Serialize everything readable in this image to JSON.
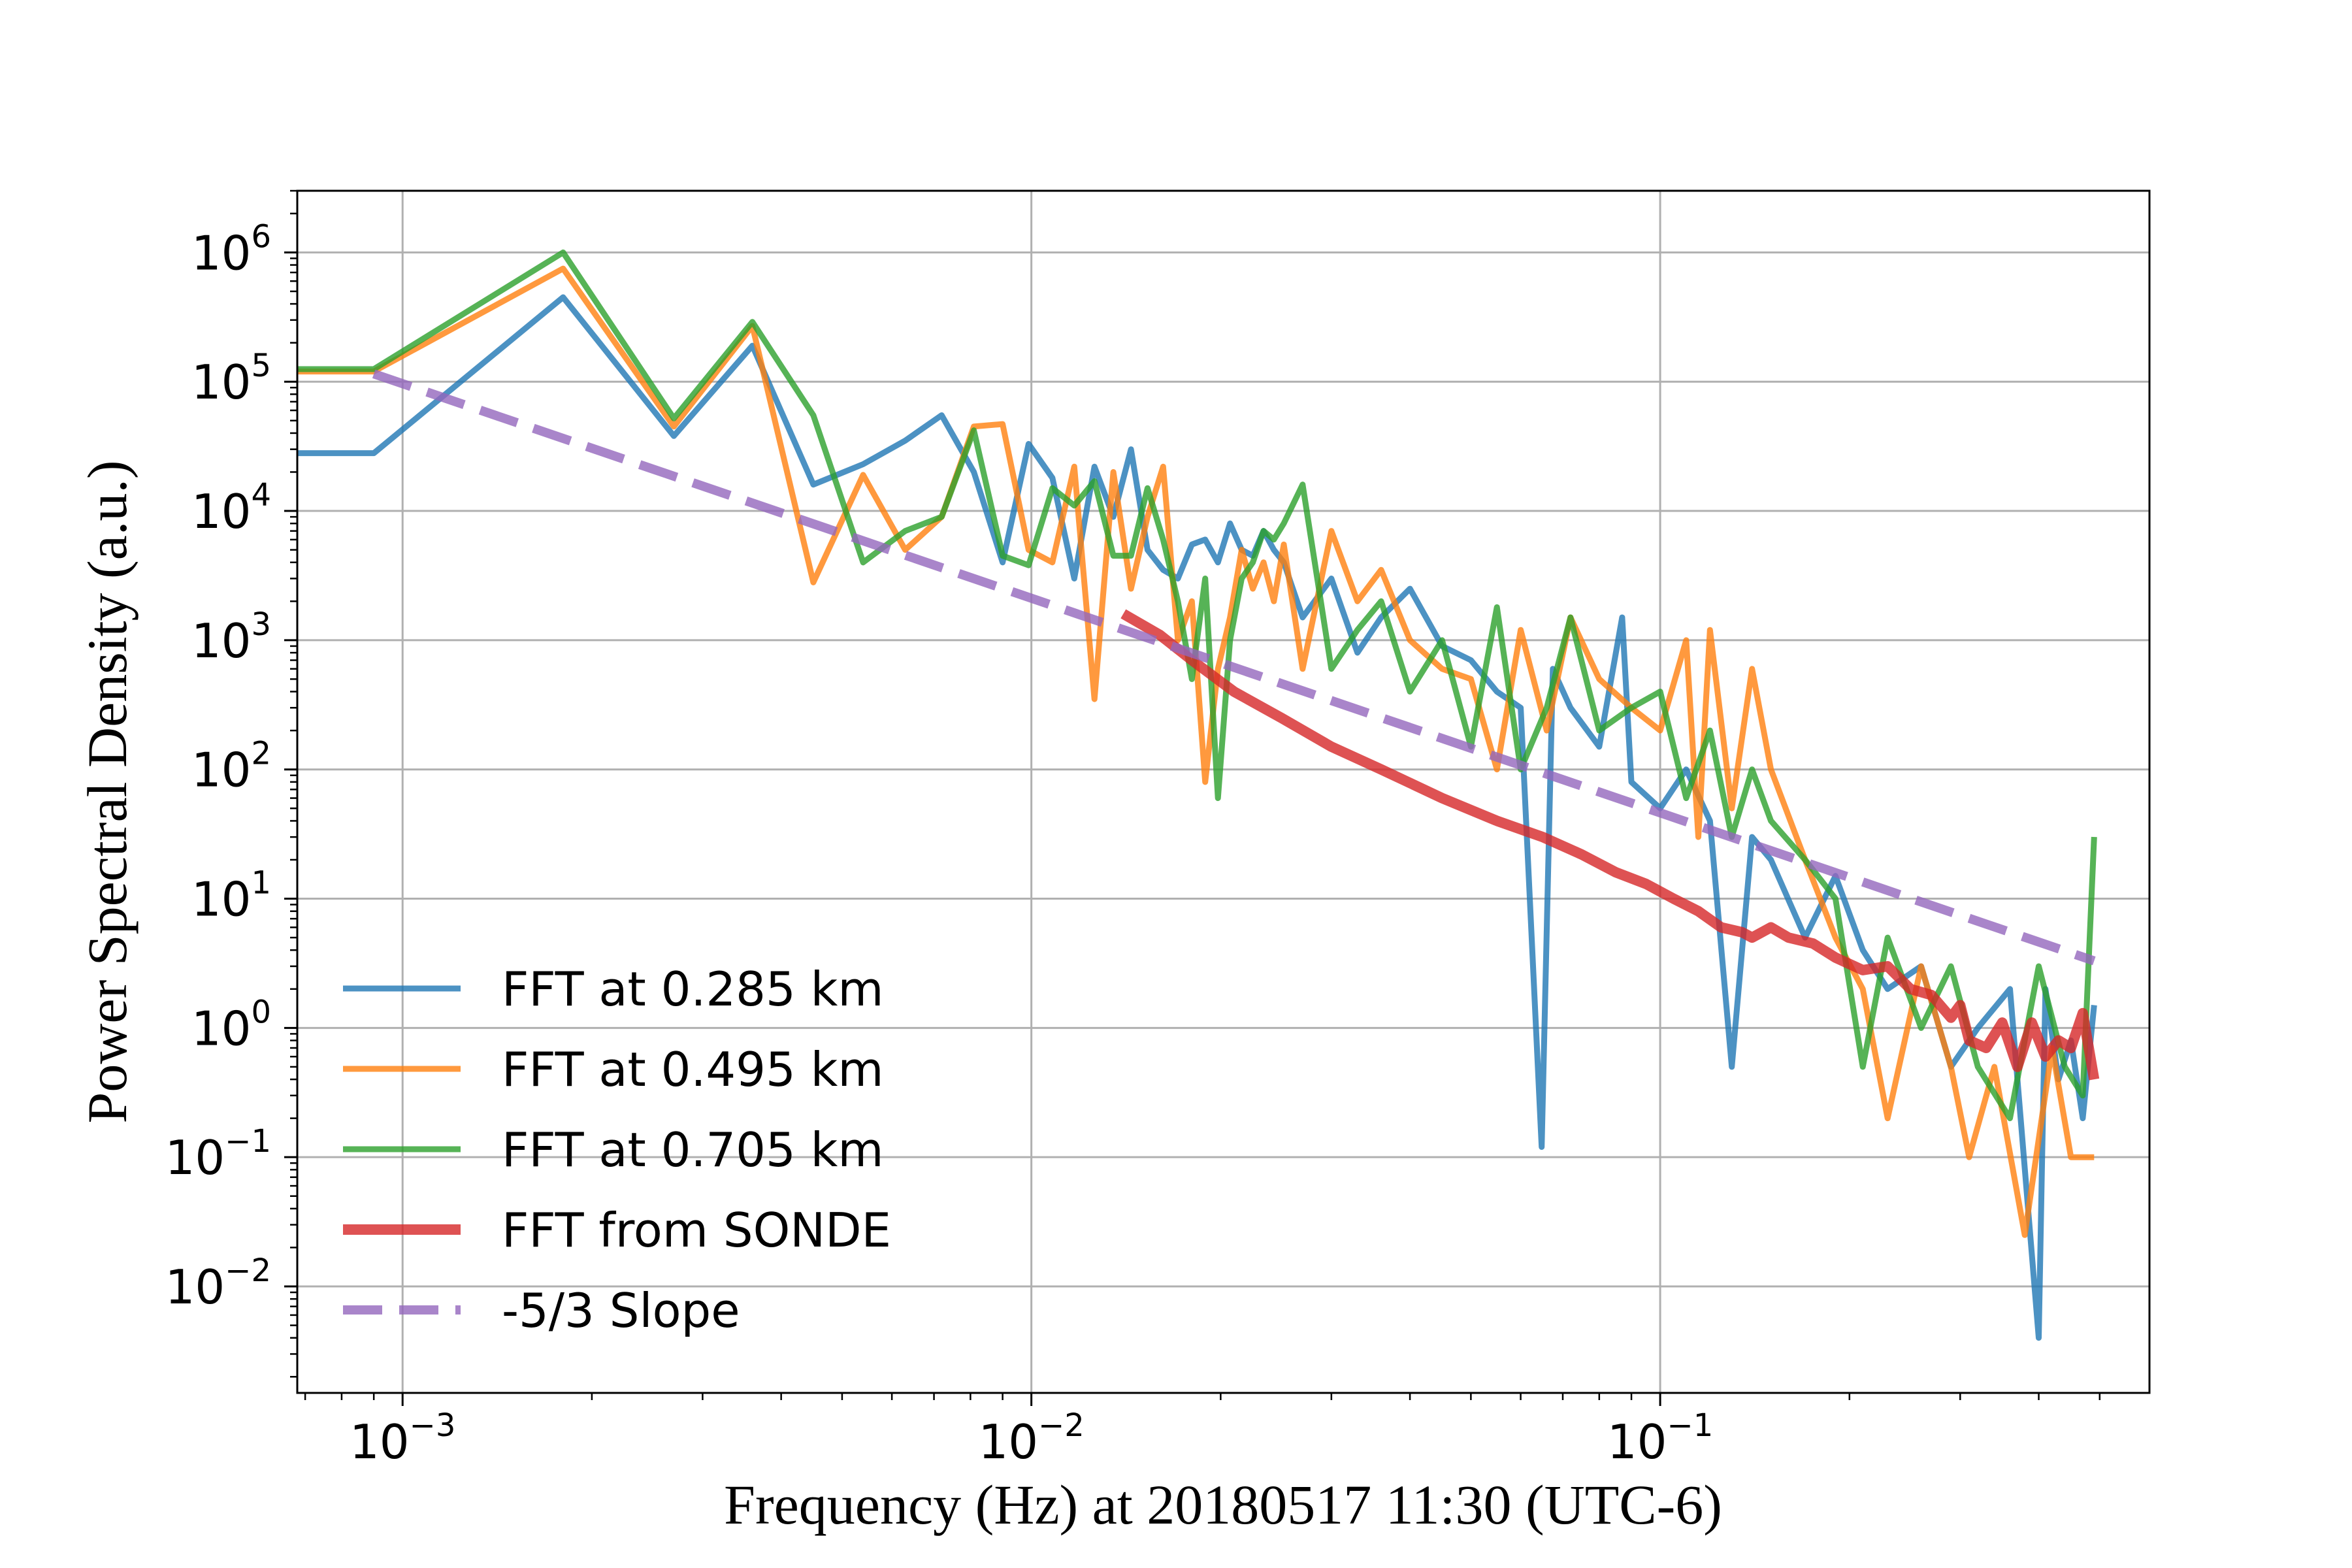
{
  "chart_data": {
    "type": "line",
    "title": "",
    "xlabel": "Frequency (Hz) at 20180517 11:30 (UTC-6)",
    "ylabel": "Power Spectral Density (a.u.)",
    "xscale": "log",
    "yscale": "log",
    "xlim": [
      0.00068,
      0.6
    ],
    "ylim": [
      0.0015,
      3000000
    ],
    "grid": true,
    "legend_position": "lower-left",
    "x_ticks": [
      {
        "value": 0.001,
        "base": "10",
        "exp": "−3"
      },
      {
        "value": 0.01,
        "base": "10",
        "exp": "−2"
      },
      {
        "value": 0.1,
        "base": "10",
        "exp": "−1"
      }
    ],
    "y_ticks": [
      {
        "value": 0.01,
        "base": "10",
        "exp": "−2"
      },
      {
        "value": 0.1,
        "base": "10",
        "exp": "−1"
      },
      {
        "value": 1,
        "base": "10",
        "exp": "0"
      },
      {
        "value": 10,
        "base": "10",
        "exp": "1"
      },
      {
        "value": 100,
        "base": "10",
        "exp": "2"
      },
      {
        "value": 1000,
        "base": "10",
        "exp": "3"
      },
      {
        "value": 10000,
        "base": "10",
        "exp": "4"
      },
      {
        "value": 100000,
        "base": "10",
        "exp": "5"
      },
      {
        "value": 1000000,
        "base": "10",
        "exp": "6"
      }
    ],
    "series": [
      {
        "name": "FFT at 0.285 km",
        "color": "#1f77b4",
        "style": "solid",
        "x": [
          0.00068,
          0.0009,
          0.0018,
          0.0027,
          0.0036,
          0.0045,
          0.0054,
          0.0063,
          0.0072,
          0.0081,
          0.009,
          0.0099,
          0.0108,
          0.0117,
          0.0126,
          0.0135,
          0.0144,
          0.0153,
          0.0162,
          0.0171,
          0.018,
          0.0189,
          0.0198,
          0.0207,
          0.0216,
          0.0225,
          0.0234,
          0.0243,
          0.0252,
          0.027,
          0.03,
          0.033,
          0.036,
          0.04,
          0.045,
          0.05,
          0.055,
          0.06,
          0.0648,
          0.0675,
          0.072,
          0.08,
          0.087,
          0.09,
          0.1,
          0.11,
          0.12,
          0.13,
          0.14,
          0.15,
          0.17,
          0.19,
          0.21,
          0.23,
          0.26,
          0.29,
          0.32,
          0.36,
          0.4,
          0.405,
          0.41,
          0.43,
          0.45,
          0.47,
          0.49
        ],
        "y": [
          28000,
          28000,
          450000,
          38000,
          190000,
          16000,
          23000,
          35000,
          55000,
          20000,
          4000,
          33000,
          18000,
          3000,
          22000,
          9000,
          30000,
          5000,
          3500,
          3000,
          5500,
          6000,
          4000,
          8000,
          5000,
          4500,
          7000,
          5000,
          4000,
          1500,
          3000,
          800,
          1500,
          2500,
          900,
          700,
          400,
          300,
          0.12,
          600,
          300,
          150,
          1500,
          80,
          50,
          100,
          40,
          0.5,
          30,
          20,
          5,
          15,
          4,
          2,
          3,
          0.5,
          1,
          2,
          0.004,
          0.1,
          2,
          0.4,
          0.8,
          0.2,
          1.5
        ]
      },
      {
        "name": "FFT at 0.495 km",
        "color": "#ff7f0e",
        "style": "solid",
        "x": [
          0.00068,
          0.0009,
          0.0018,
          0.0027,
          0.0036,
          0.0045,
          0.0054,
          0.0063,
          0.0072,
          0.0081,
          0.009,
          0.0099,
          0.0108,
          0.0117,
          0.0126,
          0.0135,
          0.0144,
          0.0153,
          0.0162,
          0.0171,
          0.018,
          0.0189,
          0.0198,
          0.0207,
          0.0216,
          0.0225,
          0.0234,
          0.0243,
          0.0252,
          0.027,
          0.03,
          0.033,
          0.036,
          0.04,
          0.045,
          0.05,
          0.055,
          0.06,
          0.066,
          0.072,
          0.08,
          0.09,
          0.1,
          0.11,
          0.115,
          0.12,
          0.13,
          0.14,
          0.15,
          0.17,
          0.19,
          0.21,
          0.23,
          0.26,
          0.29,
          0.31,
          0.34,
          0.38,
          0.42,
          0.45,
          0.49
        ],
        "y": [
          120000,
          120000,
          750000,
          45000,
          270000,
          2800,
          19000,
          5000,
          9000,
          45000,
          47000,
          5000,
          4000,
          22000,
          350,
          20000,
          2500,
          9000,
          22000,
          1000,
          2000,
          80,
          600,
          1500,
          5000,
          2500,
          4000,
          2000,
          5500,
          600,
          7000,
          2000,
          3500,
          1000,
          600,
          500,
          100,
          1200,
          200,
          1500,
          500,
          300,
          200,
          1000,
          30,
          1200,
          50,
          600,
          100,
          20,
          5,
          2,
          0.2,
          3,
          0.5,
          0.1,
          0.5,
          0.025,
          0.7,
          0.1,
          0.1
        ]
      },
      {
        "name": "FFT at 0.705 km",
        "color": "#2ca02c",
        "style": "solid",
        "x": [
          0.00068,
          0.0009,
          0.0018,
          0.0027,
          0.0036,
          0.0045,
          0.0054,
          0.0063,
          0.0072,
          0.0081,
          0.009,
          0.0099,
          0.0108,
          0.0117,
          0.0126,
          0.0135,
          0.0144,
          0.0153,
          0.0162,
          0.0171,
          0.018,
          0.0189,
          0.0198,
          0.0207,
          0.0216,
          0.0225,
          0.0234,
          0.0243,
          0.0252,
          0.027,
          0.03,
          0.033,
          0.036,
          0.04,
          0.045,
          0.05,
          0.055,
          0.06,
          0.066,
          0.072,
          0.08,
          0.09,
          0.1,
          0.11,
          0.12,
          0.13,
          0.14,
          0.15,
          0.17,
          0.19,
          0.21,
          0.23,
          0.26,
          0.29,
          0.32,
          0.36,
          0.4,
          0.44,
          0.47,
          0.49
        ],
        "y": [
          125000,
          125000,
          1000000,
          52000,
          290000,
          55000,
          4000,
          7000,
          9000,
          42000,
          4500,
          3800,
          15000,
          11000,
          17000,
          4500,
          4500,
          15000,
          6000,
          2000,
          500,
          3000,
          60,
          1000,
          3000,
          4000,
          7000,
          6000,
          8000,
          16000,
          600,
          1200,
          2000,
          400,
          1000,
          150,
          1800,
          100,
          300,
          1500,
          200,
          300,
          400,
          60,
          200,
          30,
          100,
          40,
          20,
          10,
          0.5,
          5,
          1,
          3,
          0.5,
          0.2,
          3,
          0.5,
          0.3,
          30
        ]
      },
      {
        "name": "FFT from SONDE",
        "color": "#d62728",
        "style": "solid",
        "x": [
          0.014,
          0.016,
          0.018,
          0.021,
          0.025,
          0.03,
          0.036,
          0.045,
          0.055,
          0.065,
          0.075,
          0.085,
          0.095,
          0.105,
          0.115,
          0.125,
          0.135,
          0.14,
          0.15,
          0.16,
          0.175,
          0.19,
          0.21,
          0.23,
          0.25,
          0.27,
          0.29,
          0.3,
          0.31,
          0.33,
          0.35,
          0.37,
          0.39,
          0.41,
          0.43,
          0.45,
          0.47,
          0.49
        ],
        "y": [
          1600,
          1100,
          700,
          400,
          250,
          150,
          100,
          60,
          40,
          30,
          22,
          16,
          13,
          10,
          8,
          6,
          5.5,
          5,
          6,
          5,
          4.5,
          3.5,
          2.8,
          3,
          2,
          1.8,
          1.2,
          1.5,
          0.8,
          0.7,
          1.1,
          0.5,
          1.1,
          0.6,
          0.8,
          0.7,
          1.3,
          0.4
        ]
      },
      {
        "name": "-5/3 Slope",
        "color": "#9467bd",
        "style": "dashed",
        "x": [
          0.0009,
          0.49
        ],
        "y": [
          115000,
          3.3
        ]
      }
    ]
  }
}
